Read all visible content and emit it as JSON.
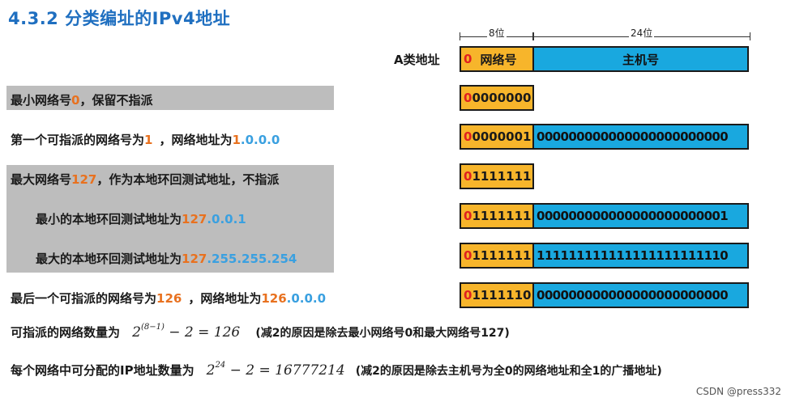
{
  "title": "4.3.2 分类编址的IPv4地址",
  "header": {
    "class_label": "A类地址",
    "ruler_net": "8位",
    "ruler_host": "24位",
    "net_zero": "0",
    "net_label": "网络号",
    "host_label": "主机号"
  },
  "rows": [
    {
      "text_a": "最小网络号",
      "hl_a": "0",
      "text_b": "，保留不指派",
      "hl_b": "",
      "hl_c": "",
      "bit_first": "0",
      "bits_rest": "0000000",
      "host_bits": ""
    },
    {
      "text_a": "第一个可指派的网络号为",
      "hl_a": "1",
      "text_b": "，网络地址为",
      "hl_b": "1",
      "hl_c": ".0.0.0",
      "bit_first": "0",
      "bits_rest": "0000001",
      "host_bits": "000000000000000000000000"
    },
    {
      "text_a": "最大网络号",
      "hl_a": "127",
      "text_b": "，作为本地环回测试地址，不指派",
      "hl_b": "",
      "hl_c": "",
      "bit_first": "0",
      "bits_rest": "1111111",
      "host_bits": ""
    },
    {
      "text_a": "最小的本地环回测试地址为",
      "hl_a": "127",
      "text_b": "",
      "hl_b": "",
      "hl_c": ".0.0.1",
      "bit_first": "0",
      "bits_rest": "1111111",
      "host_bits": "000000000000000000000001"
    },
    {
      "text_a": "最大的本地环回测试地址为",
      "hl_a": "127",
      "text_b": "",
      "hl_b": "",
      "hl_c": ".255.255.254",
      "bit_first": "0",
      "bits_rest": "1111111",
      "host_bits": "111111111111111111111110"
    },
    {
      "text_a": "最后一个可指派的网络号为",
      "hl_a": "126",
      "text_b": "，网络地址为",
      "hl_b": "126",
      "hl_c": ".0.0.0",
      "bit_first": "0",
      "bits_rest": "1111110",
      "host_bits": "000000000000000000000000"
    }
  ],
  "formula1": {
    "label": "可指派的网络数量为",
    "base": "2",
    "exp": "(8−1)",
    "rest": "− 2 = 126",
    "note": "(减2的原因是除去最小网络号0和最大网络号127)"
  },
  "formula2": {
    "label": "每个网络中可分配的IP地址数量为",
    "base": "2",
    "exp": "24",
    "rest": "− 2 = 16777214",
    "note": "(减2的原因是除去主机号为全0的网络地址和全1的广播地址)"
  },
  "footer": "CSDN @press332",
  "colors": {
    "title": "#1f6fc0",
    "network": "#f7b52b",
    "host": "#19a8df",
    "highlight_orange": "#e8711f",
    "highlight_blue": "#3aa0e0",
    "gray_box": "#bdbdbd"
  }
}
